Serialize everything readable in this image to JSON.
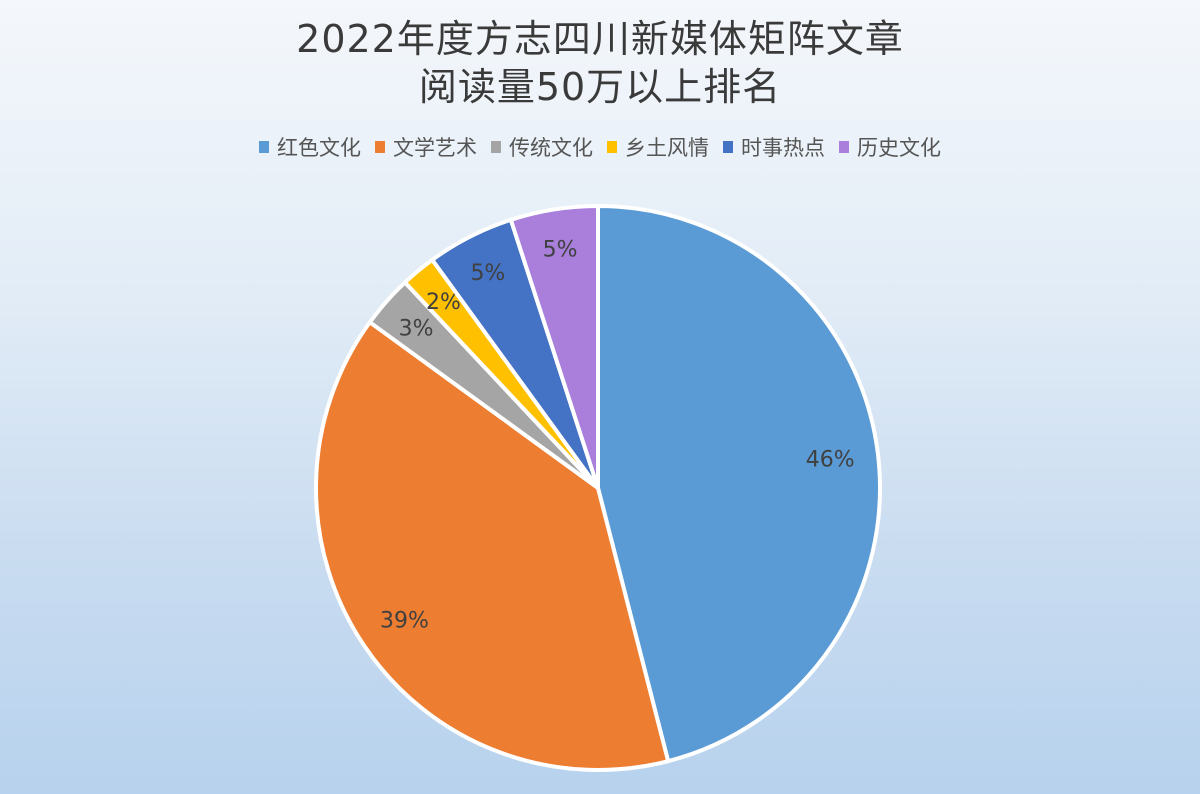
{
  "chart_data": {
    "type": "pie",
    "title": [
      "2022年度方志四川新媒体矩阵文章",
      "阅读量50万以上排名"
    ],
    "legend_position": "top",
    "start_angle": "12 o'clock, clockwise",
    "slices": [
      {
        "name": "红色文化",
        "value": 46,
        "label": "46%",
        "color": "#5B9BD5"
      },
      {
        "name": "文学艺术",
        "value": 39,
        "label": "39%",
        "color": "#ED7D31"
      },
      {
        "name": "传统文化",
        "value": 3,
        "label": "3%",
        "color": "#A5A5A5"
      },
      {
        "name": "乡土风情",
        "value": 2,
        "label": "2%",
        "color": "#FFC000"
      },
      {
        "name": "时事热点",
        "value": 5,
        "label": "5%",
        "color": "#4472C4"
      },
      {
        "name": "历史文化",
        "value": 5,
        "label": "5%",
        "color": "#A97FDB"
      }
    ]
  }
}
